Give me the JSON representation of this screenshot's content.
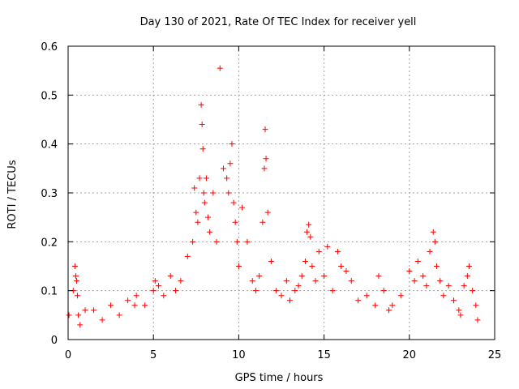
{
  "chart_data": {
    "type": "scatter",
    "title": "Day 130 of 2021, Rate Of TEC Index for receiver yell",
    "xlabel": "GPS time / hours",
    "ylabel": "ROTI / TECUs",
    "xlim": [
      0,
      25
    ],
    "ylim": [
      0,
      0.6
    ],
    "x_ticks": [
      "0",
      "5",
      "10",
      "15",
      "20",
      "25"
    ],
    "y_ticks": [
      "0",
      "0.1",
      "0.2",
      "0.3",
      "0.4",
      "0.5",
      "0.6"
    ],
    "grid": true,
    "legend": "none",
    "marker": "plus",
    "color": "#ff0000",
    "series": [
      {
        "x": [
          0.05,
          0.3,
          0.4,
          0.45,
          0.5,
          0.55,
          0.6,
          0.7,
          1.0,
          1.5,
          2.0,
          2.5,
          3.0,
          3.5,
          3.9,
          4.0,
          4.5,
          5.0,
          5.1,
          5.3,
          5.6,
          6.0,
          6.3,
          6.6,
          7.0,
          7.3,
          7.4,
          7.5,
          7.6,
          7.7,
          7.8,
          7.85,
          7.9,
          7.95,
          8.0,
          8.1,
          8.2,
          8.3,
          8.5,
          8.7,
          8.9,
          9.1,
          9.3,
          9.4,
          9.5,
          9.6,
          9.7,
          9.8,
          9.9,
          10.0,
          10.2,
          10.5,
          10.8,
          11.0,
          11.2,
          11.4,
          11.5,
          11.55,
          11.6,
          11.7,
          11.9,
          12.2,
          12.5,
          12.8,
          13.0,
          13.3,
          13.5,
          13.7,
          13.9,
          14.0,
          14.1,
          14.2,
          14.3,
          14.5,
          14.7,
          15.0,
          15.2,
          15.5,
          15.8,
          16.0,
          16.3,
          16.6,
          17.0,
          17.5,
          18.0,
          18.2,
          18.5,
          18.8,
          19.0,
          19.5,
          20.0,
          20.3,
          20.5,
          20.8,
          21.0,
          21.2,
          21.4,
          21.5,
          21.6,
          21.8,
          22.0,
          22.3,
          22.6,
          22.9,
          23.0,
          23.2,
          23.4,
          23.5,
          23.7,
          23.9,
          24.0
        ],
        "y": [
          0.05,
          0.1,
          0.15,
          0.13,
          0.12,
          0.09,
          0.05,
          0.03,
          0.06,
          0.06,
          0.04,
          0.07,
          0.05,
          0.08,
          0.07,
          0.09,
          0.07,
          0.1,
          0.12,
          0.11,
          0.09,
          0.13,
          0.1,
          0.12,
          0.17,
          0.2,
          0.31,
          0.26,
          0.24,
          0.33,
          0.48,
          0.44,
          0.39,
          0.3,
          0.28,
          0.33,
          0.25,
          0.22,
          0.3,
          0.2,
          0.555,
          0.35,
          0.33,
          0.3,
          0.36,
          0.4,
          0.28,
          0.24,
          0.2,
          0.15,
          0.27,
          0.2,
          0.12,
          0.1,
          0.13,
          0.24,
          0.35,
          0.43,
          0.37,
          0.26,
          0.16,
          0.1,
          0.09,
          0.12,
          0.08,
          0.1,
          0.11,
          0.13,
          0.16,
          0.22,
          0.235,
          0.21,
          0.15,
          0.12,
          0.18,
          0.13,
          0.19,
          0.1,
          0.18,
          0.15,
          0.14,
          0.12,
          0.08,
          0.09,
          0.07,
          0.13,
          0.1,
          0.06,
          0.07,
          0.09,
          0.14,
          0.12,
          0.16,
          0.13,
          0.11,
          0.18,
          0.22,
          0.2,
          0.15,
          0.12,
          0.09,
          0.11,
          0.08,
          0.06,
          0.05,
          0.11,
          0.13,
          0.15,
          0.1,
          0.07,
          0.04
        ]
      }
    ]
  }
}
